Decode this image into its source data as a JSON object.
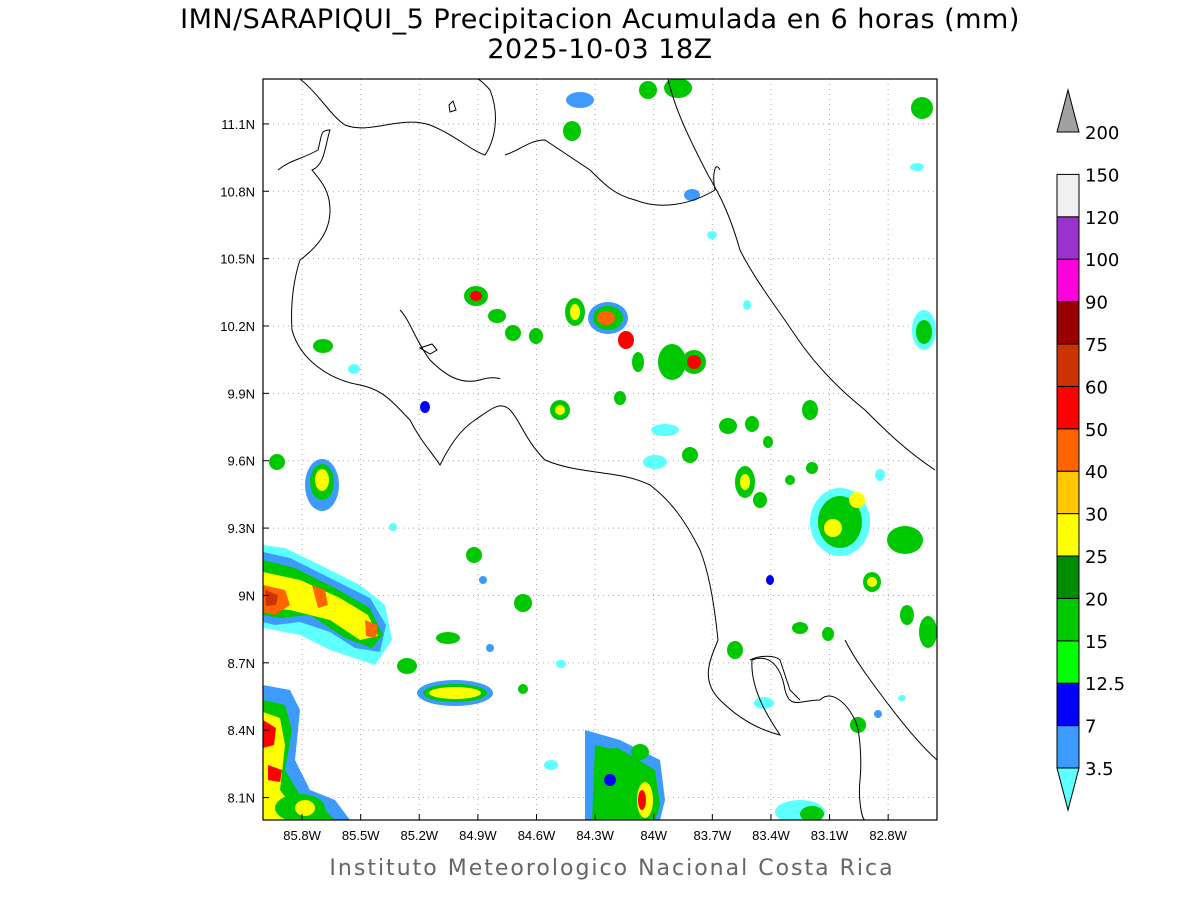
{
  "title": {
    "line1": "IMN/SARAPIQUI_5 Precipitacion Acumulada en 6 horas (mm)",
    "line2": "2025-10-03 18Z"
  },
  "footer": "Instituto Meteorologico Nacional Costa Rica",
  "map": {
    "lon_range": [
      -86.0,
      -82.55
    ],
    "lat_range": [
      8.0,
      11.3
    ],
    "lat_ticks": [
      {
        "value": 11.1,
        "label": "11.1N"
      },
      {
        "value": 10.8,
        "label": "10.8N"
      },
      {
        "value": 10.5,
        "label": "10.5N"
      },
      {
        "value": 10.2,
        "label": "10.2N"
      },
      {
        "value": 9.9,
        "label": "9.9N"
      },
      {
        "value": 9.6,
        "label": "9.6N"
      },
      {
        "value": 9.3,
        "label": "9.3N"
      },
      {
        "value": 9.0,
        "label": "9N"
      },
      {
        "value": 8.7,
        "label": "8.7N"
      },
      {
        "value": 8.4,
        "label": "8.4N"
      },
      {
        "value": 8.1,
        "label": "8.1N"
      }
    ],
    "lon_ticks": [
      {
        "value": -85.8,
        "label": "85.8W"
      },
      {
        "value": -85.5,
        "label": "85.5W"
      },
      {
        "value": -85.2,
        "label": "85.2W"
      },
      {
        "value": -84.9,
        "label": "84.9W"
      },
      {
        "value": -84.6,
        "label": "84.6W"
      },
      {
        "value": -84.3,
        "label": "84.3W"
      },
      {
        "value": -84.0,
        "label": "84W"
      },
      {
        "value": -83.7,
        "label": "83.7W"
      },
      {
        "value": -83.4,
        "label": "83.4W"
      },
      {
        "value": -83.1,
        "label": "83.1W"
      },
      {
        "value": -82.8,
        "label": "82.8W"
      }
    ],
    "grid": true
  },
  "colorbar": {
    "unit": "mm",
    "levels": [
      {
        "label": "3.5",
        "color": "#5effff"
      },
      {
        "label": "7",
        "color": "#3d9bff"
      },
      {
        "label": "12.5",
        "color": "#0000ff"
      },
      {
        "label": "15",
        "color": "#00ff00"
      },
      {
        "label": "20",
        "color": "#00c800"
      },
      {
        "label": "25",
        "color": "#008c00"
      },
      {
        "label": "30",
        "color": "#ffff00"
      },
      {
        "label": "40",
        "color": "#ffc800"
      },
      {
        "label": "50",
        "color": "#ff6400"
      },
      {
        "label": "60",
        "color": "#ff0000"
      },
      {
        "label": "75",
        "color": "#cc3300"
      },
      {
        "label": "90",
        "color": "#990000"
      },
      {
        "label": "100",
        "color": "#ff00dc"
      },
      {
        "label": "120",
        "color": "#9933cc"
      },
      {
        "label": "150",
        "color": "#f0f0f0"
      },
      {
        "label": "200",
        "color": "#a0a0a0"
      }
    ]
  }
}
